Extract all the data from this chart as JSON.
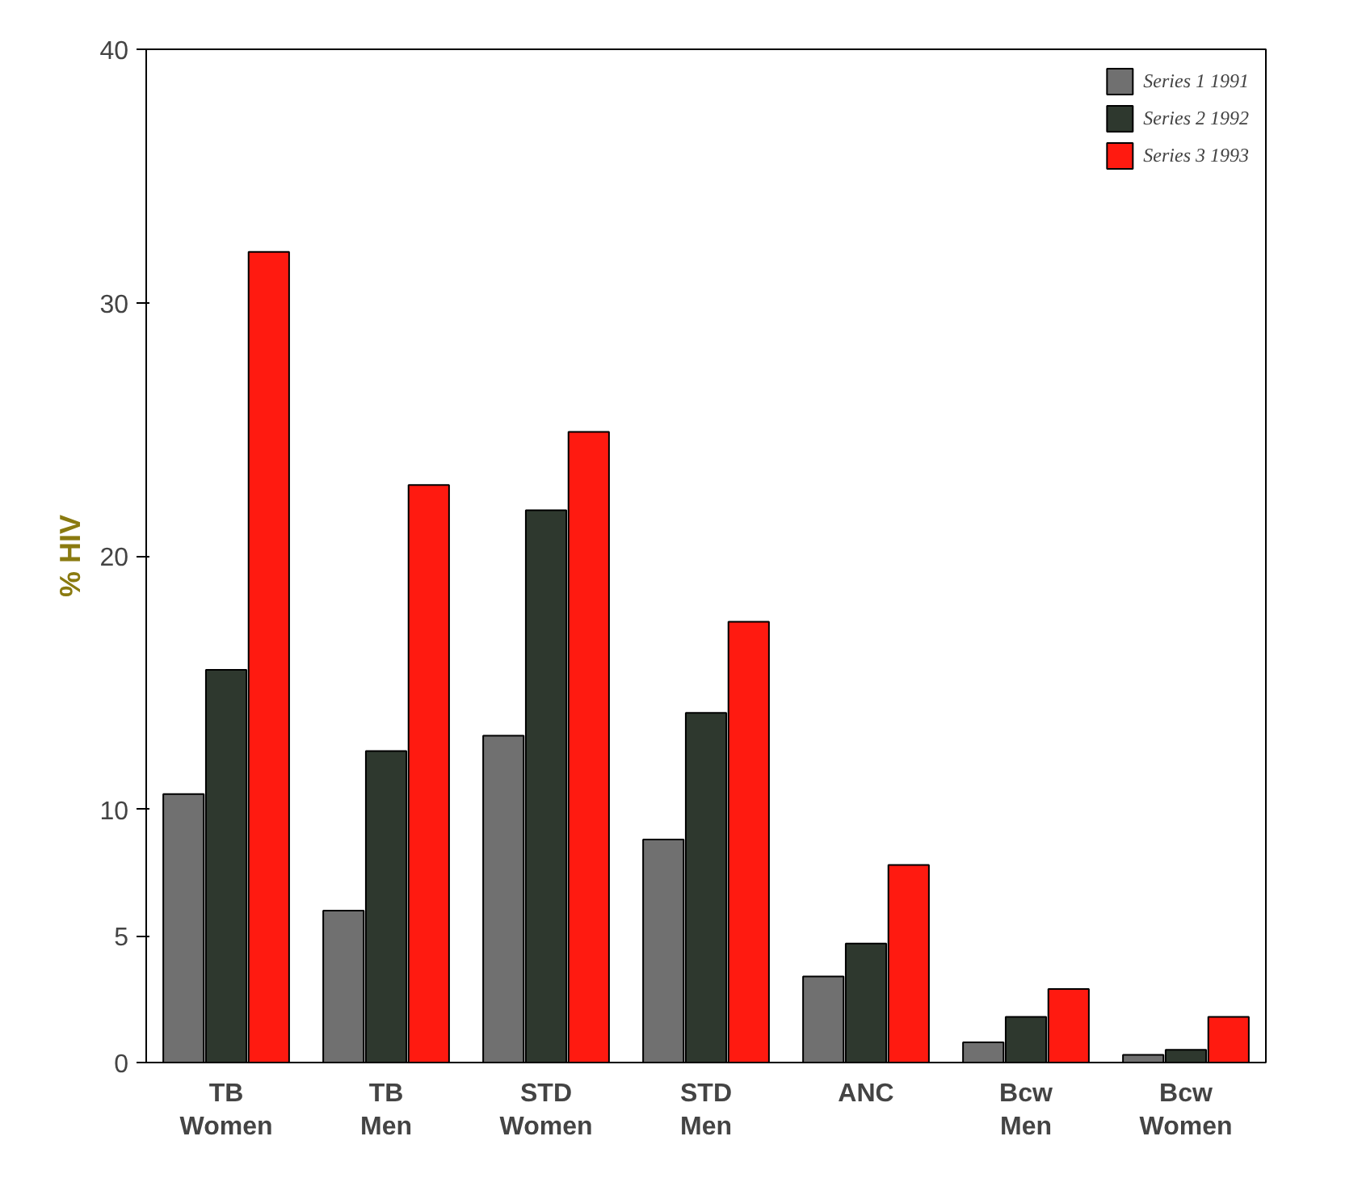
{
  "chart_data": {
    "type": "bar",
    "ylabel": "% HIV",
    "categories": [
      "TB\nWomen",
      "TB\nMen",
      "STD\nWomen",
      "STD\nMen",
      "ANC",
      "Bcw\nMen",
      "Bcw\nWomen"
    ],
    "series": [
      {
        "name": "Series 1 1991",
        "color": "#707070",
        "values": [
          10.6,
          6.0,
          12.9,
          8.8,
          3.4,
          0.8,
          0.3
        ]
      },
      {
        "name": "Series 2 1992",
        "color": "#2e382e",
        "values": [
          15.5,
          12.3,
          21.8,
          13.8,
          4.7,
          1.8,
          0.5
        ]
      },
      {
        "name": "Series 3 1993",
        "color": "#ff1a10",
        "values": [
          32,
          22.8,
          24.9,
          17.4,
          7.8,
          2.9,
          1.8
        ]
      }
    ],
    "ylim": [
      0,
      40
    ],
    "yticks": [
      0,
      5,
      10,
      20,
      30,
      40
    ],
    "grid": false,
    "legend": "top right"
  }
}
